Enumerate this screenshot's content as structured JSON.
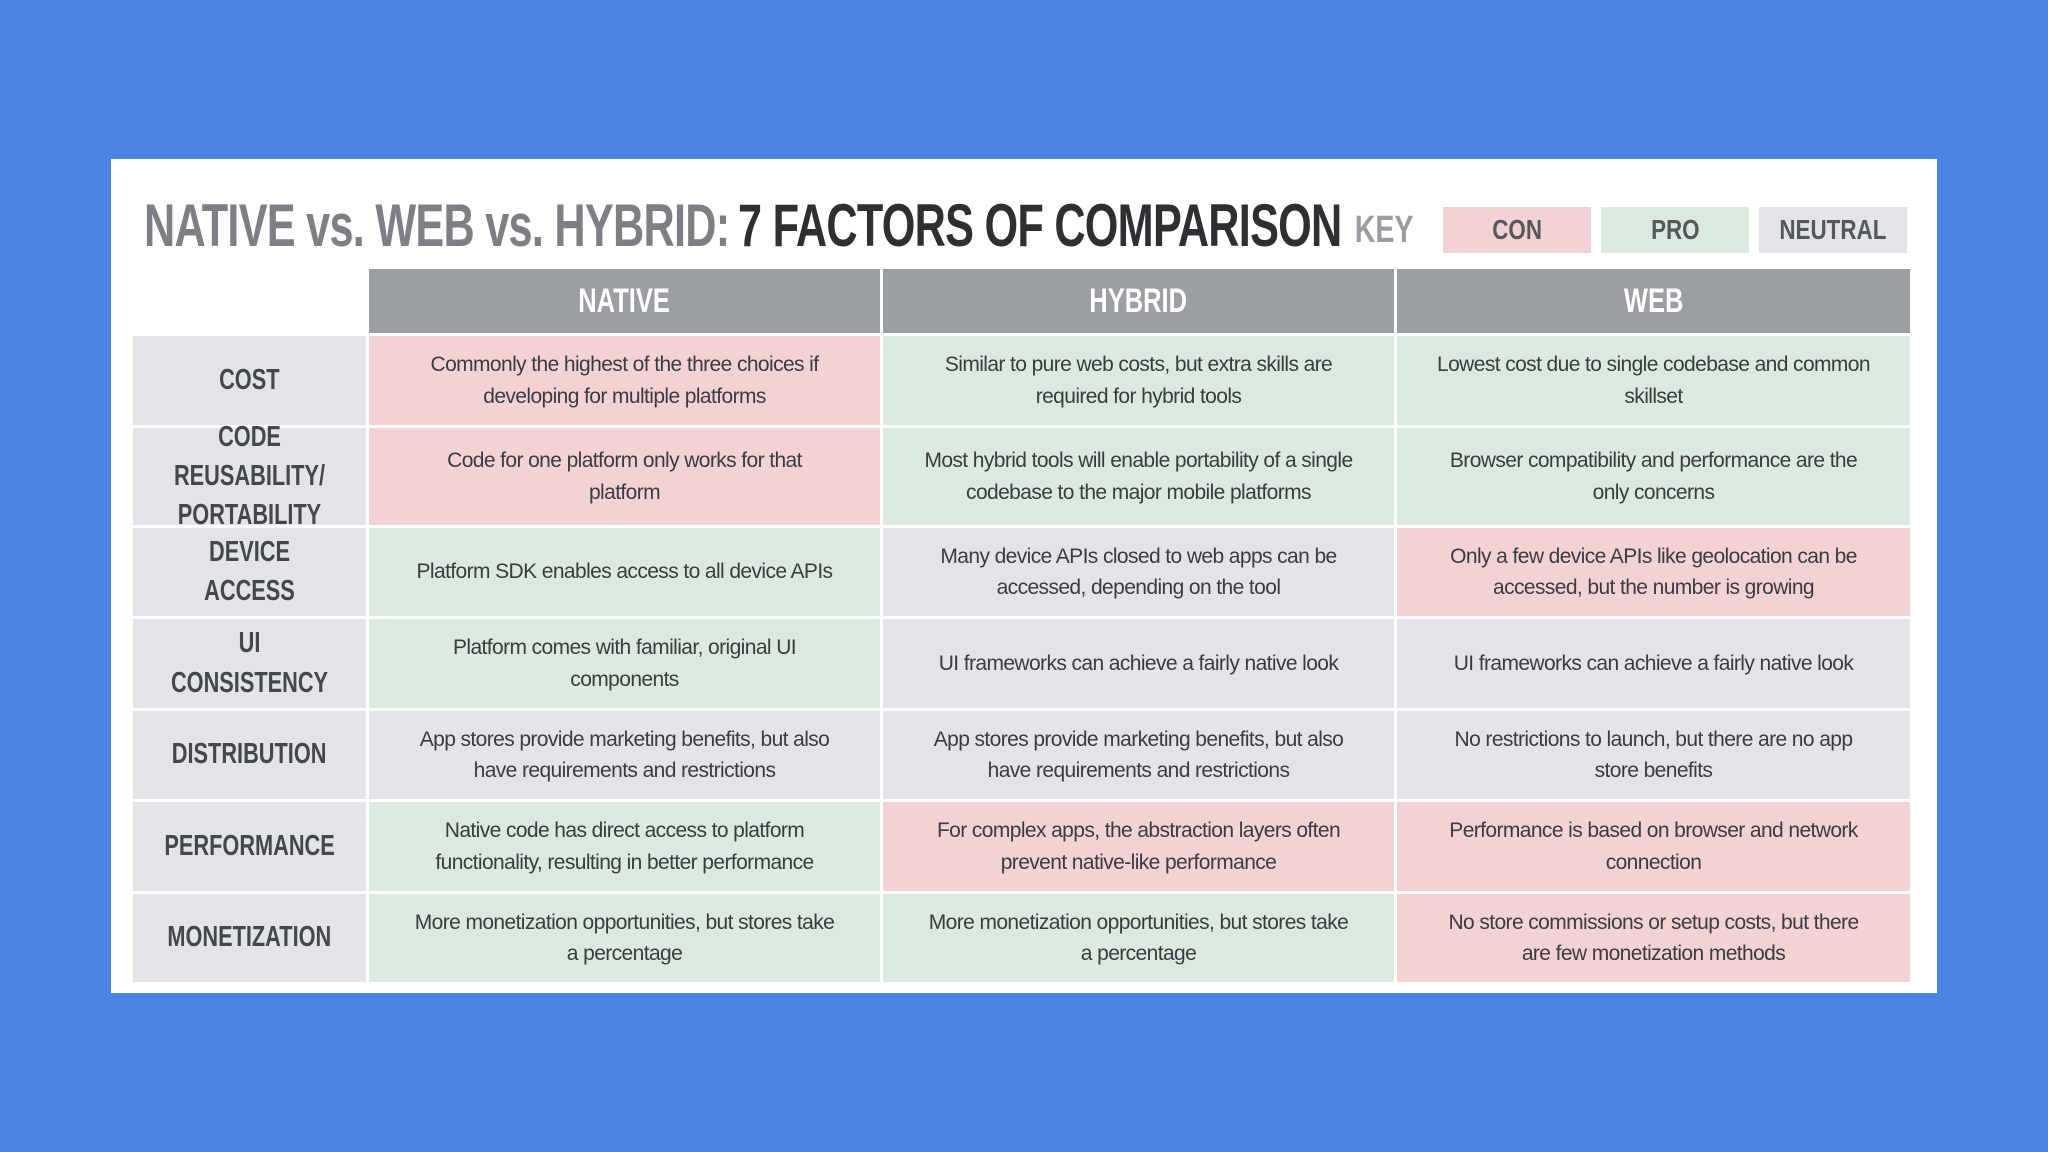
{
  "header": {
    "title_prefix": "NATIVE vs. WEB vs. HYBRID:",
    "title_main": "7 FACTORS OF COMPARISON"
  },
  "key": {
    "label": "KEY",
    "items": [
      {
        "label": "CON",
        "color": "#f3d2d5"
      },
      {
        "label": "PRO",
        "color": "#dbe9de"
      },
      {
        "label": "NEUTRAL",
        "color": "#e3e4e9"
      }
    ]
  },
  "table": {
    "columns": [
      "NATIVE",
      "HYBRID",
      "WEB"
    ],
    "rows": [
      {
        "label": "COST",
        "cells": [
          {
            "text": "Commonly the highest of the three choices if developing for multiple platforms",
            "key": "CON"
          },
          {
            "text": "Similar to pure web costs, but extra skills are required for hybrid tools",
            "key": "PRO"
          },
          {
            "text": "Lowest cost due to single codebase and common skillset",
            "key": "PRO"
          }
        ]
      },
      {
        "label": "CODE REUSABILITY/ PORTABILITY",
        "cells": [
          {
            "text": "Code for one platform only works for that platform",
            "key": "CON"
          },
          {
            "text": "Most hybrid tools will enable portability of a single codebase to the major mobile platforms",
            "key": "PRO"
          },
          {
            "text": "Browser compatibility and performance are the only concerns",
            "key": "PRO"
          }
        ]
      },
      {
        "label": "DEVICE ACCESS",
        "cells": [
          {
            "text": "Platform SDK enables access to all device APIs",
            "key": "PRO"
          },
          {
            "text": "Many device APIs closed to web apps can be accessed, depending on the tool",
            "key": "NEUTRAL"
          },
          {
            "text": "Only a few device APIs like geolocation can be accessed, but the number is growing",
            "key": "CON"
          }
        ]
      },
      {
        "label": "UI CONSISTENCY",
        "cells": [
          {
            "text": "Platform comes with familiar, original UI components",
            "key": "PRO"
          },
          {
            "text": "UI frameworks can achieve a fairly native look",
            "key": "NEUTRAL"
          },
          {
            "text": "UI frameworks can achieve a fairly native look",
            "key": "NEUTRAL"
          }
        ]
      },
      {
        "label": "DISTRIBUTION",
        "cells": [
          {
            "text": "App stores provide marketing benefits, but also have requirements and restrictions",
            "key": "NEUTRAL"
          },
          {
            "text": "App stores provide marketing benefits, but also have requirements and restrictions",
            "key": "NEUTRAL"
          },
          {
            "text": "No restrictions to launch, but there are no app store benefits",
            "key": "NEUTRAL"
          }
        ]
      },
      {
        "label": "PERFORMANCE",
        "cells": [
          {
            "text": "Native code has direct access to platform functionality, resulting in better performance",
            "key": "PRO"
          },
          {
            "text": "For complex apps, the abstraction layers often prevent native-like performance",
            "key": "CON"
          },
          {
            "text": "Performance is based on browser and network connection",
            "key": "CON"
          }
        ]
      },
      {
        "label": "MONETIZATION",
        "cells": [
          {
            "text": "More monetization opportunities, but stores take a percentage",
            "key": "PRO"
          },
          {
            "text": "More monetization opportunities, but stores take a percentage",
            "key": "PRO"
          },
          {
            "text": "No store commissions or setup costs, but there are few monetization methods",
            "key": "CON"
          }
        ]
      }
    ]
  }
}
